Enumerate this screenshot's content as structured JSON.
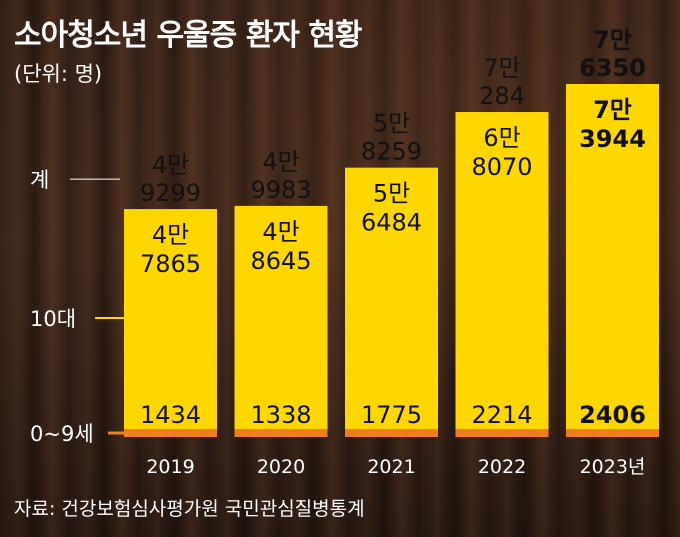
{
  "title": "소아청소년 우울증 환자 현황",
  "unit": "(단위: 명)",
  "source": "자료: 건강보험심사평가원 국민관심질병통계",
  "colors": {
    "bar": "#FFD700",
    "base": "#F07E1E",
    "text": "#111111",
    "label": "#ffffff",
    "leader": "#ffffff"
  },
  "chart_data": {
    "type": "bar",
    "stacked": true,
    "categories": [
      "2019",
      "2020",
      "2021",
      "2022",
      "2023년"
    ],
    "series": [
      {
        "name": "0~9세",
        "values": [
          1434,
          1338,
          1775,
          2214,
          2406
        ]
      },
      {
        "name": "10대",
        "values": [
          47865,
          48645,
          56484,
          68070,
          73944
        ]
      }
    ],
    "totals": [
      49299,
      49983,
      58259,
      70284,
      76350
    ],
    "total_label": "계",
    "value_labels": {
      "totals": [
        [
          "4만",
          "9299"
        ],
        [
          "4만",
          "9983"
        ],
        [
          "5만",
          "8259"
        ],
        [
          "7만",
          "284"
        ],
        [
          "7만",
          "6350"
        ]
      ],
      "teens": [
        [
          "4만",
          "7865"
        ],
        [
          "4만",
          "8645"
        ],
        [
          "5만",
          "6484"
        ],
        [
          "6만",
          "8070"
        ],
        [
          "7만",
          "3944"
        ]
      ],
      "kids": [
        "1434",
        "1338",
        "1775",
        "2214",
        "2406"
      ]
    },
    "highlight_index": 4,
    "ylim": [
      0,
      76350
    ],
    "grid": false,
    "legend": "left"
  }
}
